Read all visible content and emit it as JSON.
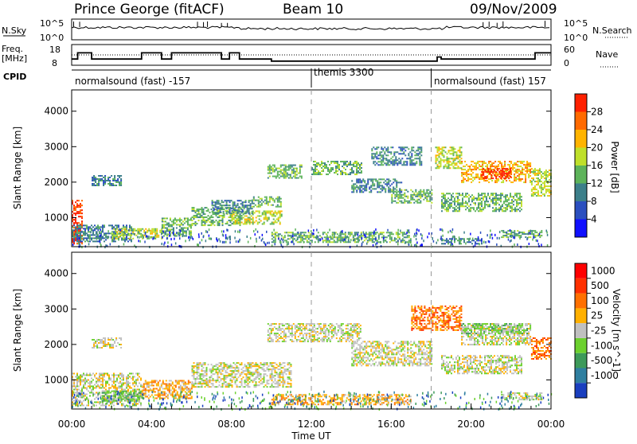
{
  "header": {
    "station": "Prince George (fitACF)",
    "beam": "Beam 10",
    "date": "09/Nov/2009"
  },
  "left_labels": {
    "nsky": "N.Sky",
    "freq_line1": "Freq.",
    "freq_line2": "[MHz]",
    "cpid": "CPID"
  },
  "right_labels": {
    "nsearch": "N.Search",
    "nave": "Nave"
  },
  "nsky_axis": {
    "left_top": "10^5",
    "left_bottom": "10^0",
    "right_top": "10^5",
    "right_bottom": "10^0"
  },
  "freq_axis": {
    "left_top": "18",
    "left_bottom": "8",
    "right_top": "60",
    "right_bottom": "0"
  },
  "cpid_segments": [
    {
      "label": "normalsound (fast) -157",
      "start_hour": 0
    },
    {
      "label": "themis 3300",
      "start_hour": 12
    },
    {
      "label": "normalsound (fast) 157",
      "start_hour": 18
    }
  ],
  "power_colorbar": {
    "label": "Power [dB]",
    "ticks": [
      "4",
      "8",
      "12",
      "16",
      "20",
      "24",
      "28"
    ],
    "colors": [
      "#1010ff",
      "#2b4fbf",
      "#3c7f8a",
      "#5db35a",
      "#bfe02a",
      "#ffb400",
      "#ff6a00",
      "#ff2000"
    ]
  },
  "velocity_colorbar": {
    "label": "Velocity [m s^-1]",
    "ticks": [
      "1000",
      "500",
      "100",
      "25",
      "-25",
      "-100",
      "-500",
      "-1000"
    ],
    "colors": [
      "#1a3fbf",
      "#2f7fa0",
      "#3d9a5a",
      "#6cd12e",
      "#c0c0c0",
      "#ffb000",
      "#ff7000",
      "#ff3000",
      "#ff0000"
    ]
  },
  "y_axis": {
    "label": "Slant Range [km]",
    "ticks": [
      "1000",
      "2000",
      "3000",
      "4000"
    ]
  },
  "x_axis": {
    "label": "Time UT",
    "ticks": [
      "00:00",
      "04:00",
      "08:00",
      "12:00",
      "16:00",
      "20:00",
      "00:00"
    ]
  },
  "chart_data": {
    "type": "heatmap",
    "x_range_hours": [
      0,
      24
    ],
    "y_range_km": [
      180,
      4600
    ],
    "frequency_segments_mhz": [
      {
        "start_hour": 0.0,
        "end_hour": 0.3,
        "value": 11
      },
      {
        "start_hour": 0.3,
        "end_hour": 1.0,
        "value": 14
      },
      {
        "start_hour": 1.0,
        "end_hour": 3.5,
        "value": 11
      },
      {
        "start_hour": 3.5,
        "end_hour": 4.5,
        "value": 14
      },
      {
        "start_hour": 4.5,
        "end_hour": 5.0,
        "value": 11
      },
      {
        "start_hour": 5.0,
        "end_hour": 7.5,
        "value": 14
      },
      {
        "start_hour": 7.5,
        "end_hour": 7.9,
        "value": 11
      },
      {
        "start_hour": 7.9,
        "end_hour": 8.4,
        "value": 14
      },
      {
        "start_hour": 8.4,
        "end_hour": 10.0,
        "value": 11
      },
      {
        "start_hour": 10.0,
        "end_hour": 18.3,
        "value": 10
      },
      {
        "start_hour": 18.3,
        "end_hour": 18.5,
        "value": 12
      },
      {
        "start_hour": 18.5,
        "end_hour": 23.2,
        "value": 11
      },
      {
        "start_hour": 23.2,
        "end_hour": 24.0,
        "value": 14
      }
    ],
    "nave_level": 30,
    "power_regions": [
      {
        "h0": 0.0,
        "h1": 0.5,
        "r0": 250,
        "r1": 1500,
        "level": 7
      },
      {
        "h0": 0.0,
        "h1": 3.0,
        "r0": 350,
        "r1": 800,
        "level": 2
      },
      {
        "h0": 2.0,
        "h1": 4.5,
        "r0": 400,
        "r1": 700,
        "level": 4
      },
      {
        "h0": 1.0,
        "h1": 2.5,
        "r0": 1900,
        "r1": 2200,
        "level": 2
      },
      {
        "h0": 4.5,
        "h1": 6.0,
        "r0": 500,
        "r1": 1000,
        "level": 3
      },
      {
        "h0": 6.0,
        "h1": 8.5,
        "r0": 800,
        "r1": 1300,
        "level": 3
      },
      {
        "h0": 8.0,
        "h1": 10.5,
        "r0": 800,
        "r1": 1200,
        "level": 4
      },
      {
        "h0": 7.0,
        "h1": 9.0,
        "r0": 1100,
        "r1": 1500,
        "level": 2
      },
      {
        "h0": 9.0,
        "h1": 10.5,
        "r0": 1300,
        "r1": 1600,
        "level": 3
      },
      {
        "h0": 9.8,
        "h1": 11.5,
        "r0": 2100,
        "r1": 2500,
        "level": 3
      },
      {
        "h0": 12.0,
        "h1": 14.5,
        "r0": 2200,
        "r1": 2600,
        "level": 3
      },
      {
        "h0": 10.0,
        "h1": 17.0,
        "r0": 300,
        "r1": 600,
        "level": 3
      },
      {
        "h0": 14.0,
        "h1": 16.5,
        "r0": 1700,
        "r1": 2100,
        "level": 2
      },
      {
        "h0": 15.0,
        "h1": 17.5,
        "r0": 2500,
        "r1": 3000,
        "level": 2
      },
      {
        "h0": 16.0,
        "h1": 18.0,
        "r0": 1400,
        "r1": 1800,
        "level": 3
      },
      {
        "h0": 18.2,
        "h1": 19.5,
        "r0": 2400,
        "r1": 3000,
        "level": 4
      },
      {
        "h0": 19.5,
        "h1": 23.0,
        "r0": 2000,
        "r1": 2600,
        "level": 5
      },
      {
        "h0": 20.5,
        "h1": 22.0,
        "r0": 2100,
        "r1": 2400,
        "level": 7
      },
      {
        "h0": 18.5,
        "h1": 22.5,
        "r0": 1200,
        "r1": 1700,
        "level": 3
      },
      {
        "h0": 23.0,
        "h1": 24.0,
        "r0": 1600,
        "r1": 2400,
        "level": 4
      },
      {
        "h0": 21.5,
        "h1": 23.5,
        "r0": 450,
        "r1": 650,
        "level": 3
      },
      {
        "h0": 18.5,
        "h1": 20.5,
        "r0": 280,
        "r1": 420,
        "level": 2
      }
    ],
    "velocity_regions": [
      {
        "h0": 0.0,
        "h1": 3.5,
        "r0": 300,
        "r1": 1200,
        "level": 4
      },
      {
        "h0": 1.5,
        "h1": 3.5,
        "r0": 400,
        "r1": 700,
        "level": 3
      },
      {
        "h0": 3.5,
        "h1": 6.0,
        "r0": 500,
        "r1": 1000,
        "level": 5
      },
      {
        "h0": 1.0,
        "h1": 2.5,
        "r0": 1900,
        "r1": 2200,
        "level": 4
      },
      {
        "h0": 6.0,
        "h1": 11.0,
        "r0": 800,
        "r1": 1500,
        "level": 4
      },
      {
        "h0": 10.0,
        "h1": 17.0,
        "r0": 300,
        "r1": 600,
        "level": 5
      },
      {
        "h0": 9.8,
        "h1": 14.5,
        "r0": 2100,
        "r1": 2600,
        "level": 4
      },
      {
        "h0": 14.0,
        "h1": 18.0,
        "r0": 1400,
        "r1": 2100,
        "level": 4
      },
      {
        "h0": 17.0,
        "h1": 19.5,
        "r0": 2400,
        "r1": 3100,
        "level": 6
      },
      {
        "h0": 19.5,
        "h1": 23.0,
        "r0": 2000,
        "r1": 2600,
        "level": 4
      },
      {
        "h0": 19.5,
        "h1": 23.0,
        "r0": 2300,
        "r1": 2600,
        "level": 3
      },
      {
        "h0": 18.5,
        "h1": 22.5,
        "r0": 1200,
        "r1": 1700,
        "level": 4
      },
      {
        "h0": 23.0,
        "h1": 24.0,
        "r0": 1600,
        "r1": 2200,
        "level": 6
      },
      {
        "h0": 21.5,
        "h1": 23.5,
        "r0": 450,
        "r1": 650,
        "level": 4
      }
    ]
  }
}
